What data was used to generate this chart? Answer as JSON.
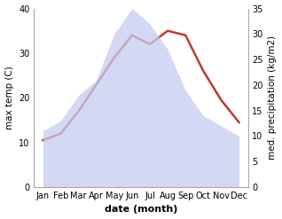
{
  "months": [
    "Jan",
    "Feb",
    "Mar",
    "Apr",
    "May",
    "Jun",
    "Jul",
    "Aug",
    "Sep",
    "Oct",
    "Nov",
    "Dec"
  ],
  "month_positions": [
    1,
    2,
    3,
    4,
    5,
    6,
    7,
    8,
    9,
    10,
    11,
    12
  ],
  "max_temp": [
    10.5,
    12.0,
    17.0,
    23.0,
    29.0,
    34.0,
    32.0,
    35.0,
    34.0,
    26.0,
    19.5,
    14.5
  ],
  "precipitation": [
    11.0,
    13.0,
    18.0,
    21.0,
    30.0,
    35.0,
    32.0,
    27.0,
    19.0,
    14.0,
    12.0,
    10.0
  ],
  "temp_ylim": [
    0,
    40
  ],
  "precip_ylim": [
    0,
    35
  ],
  "temp_yticks": [
    0,
    10,
    20,
    30,
    40
  ],
  "precip_yticks": [
    0,
    5,
    10,
    15,
    20,
    25,
    30,
    35
  ],
  "fill_color": "#c5cdf0",
  "fill_alpha": 0.75,
  "line_color": "#c0392b",
  "line_width": 1.8,
  "xlabel": "date (month)",
  "ylabel_left": "max temp (C)",
  "ylabel_right": "med. precipitation (kg/m2)",
  "bg_color": "#ffffff",
  "xlabel_fontsize": 8,
  "ylabel_fontsize": 7.5,
  "tick_fontsize": 7
}
